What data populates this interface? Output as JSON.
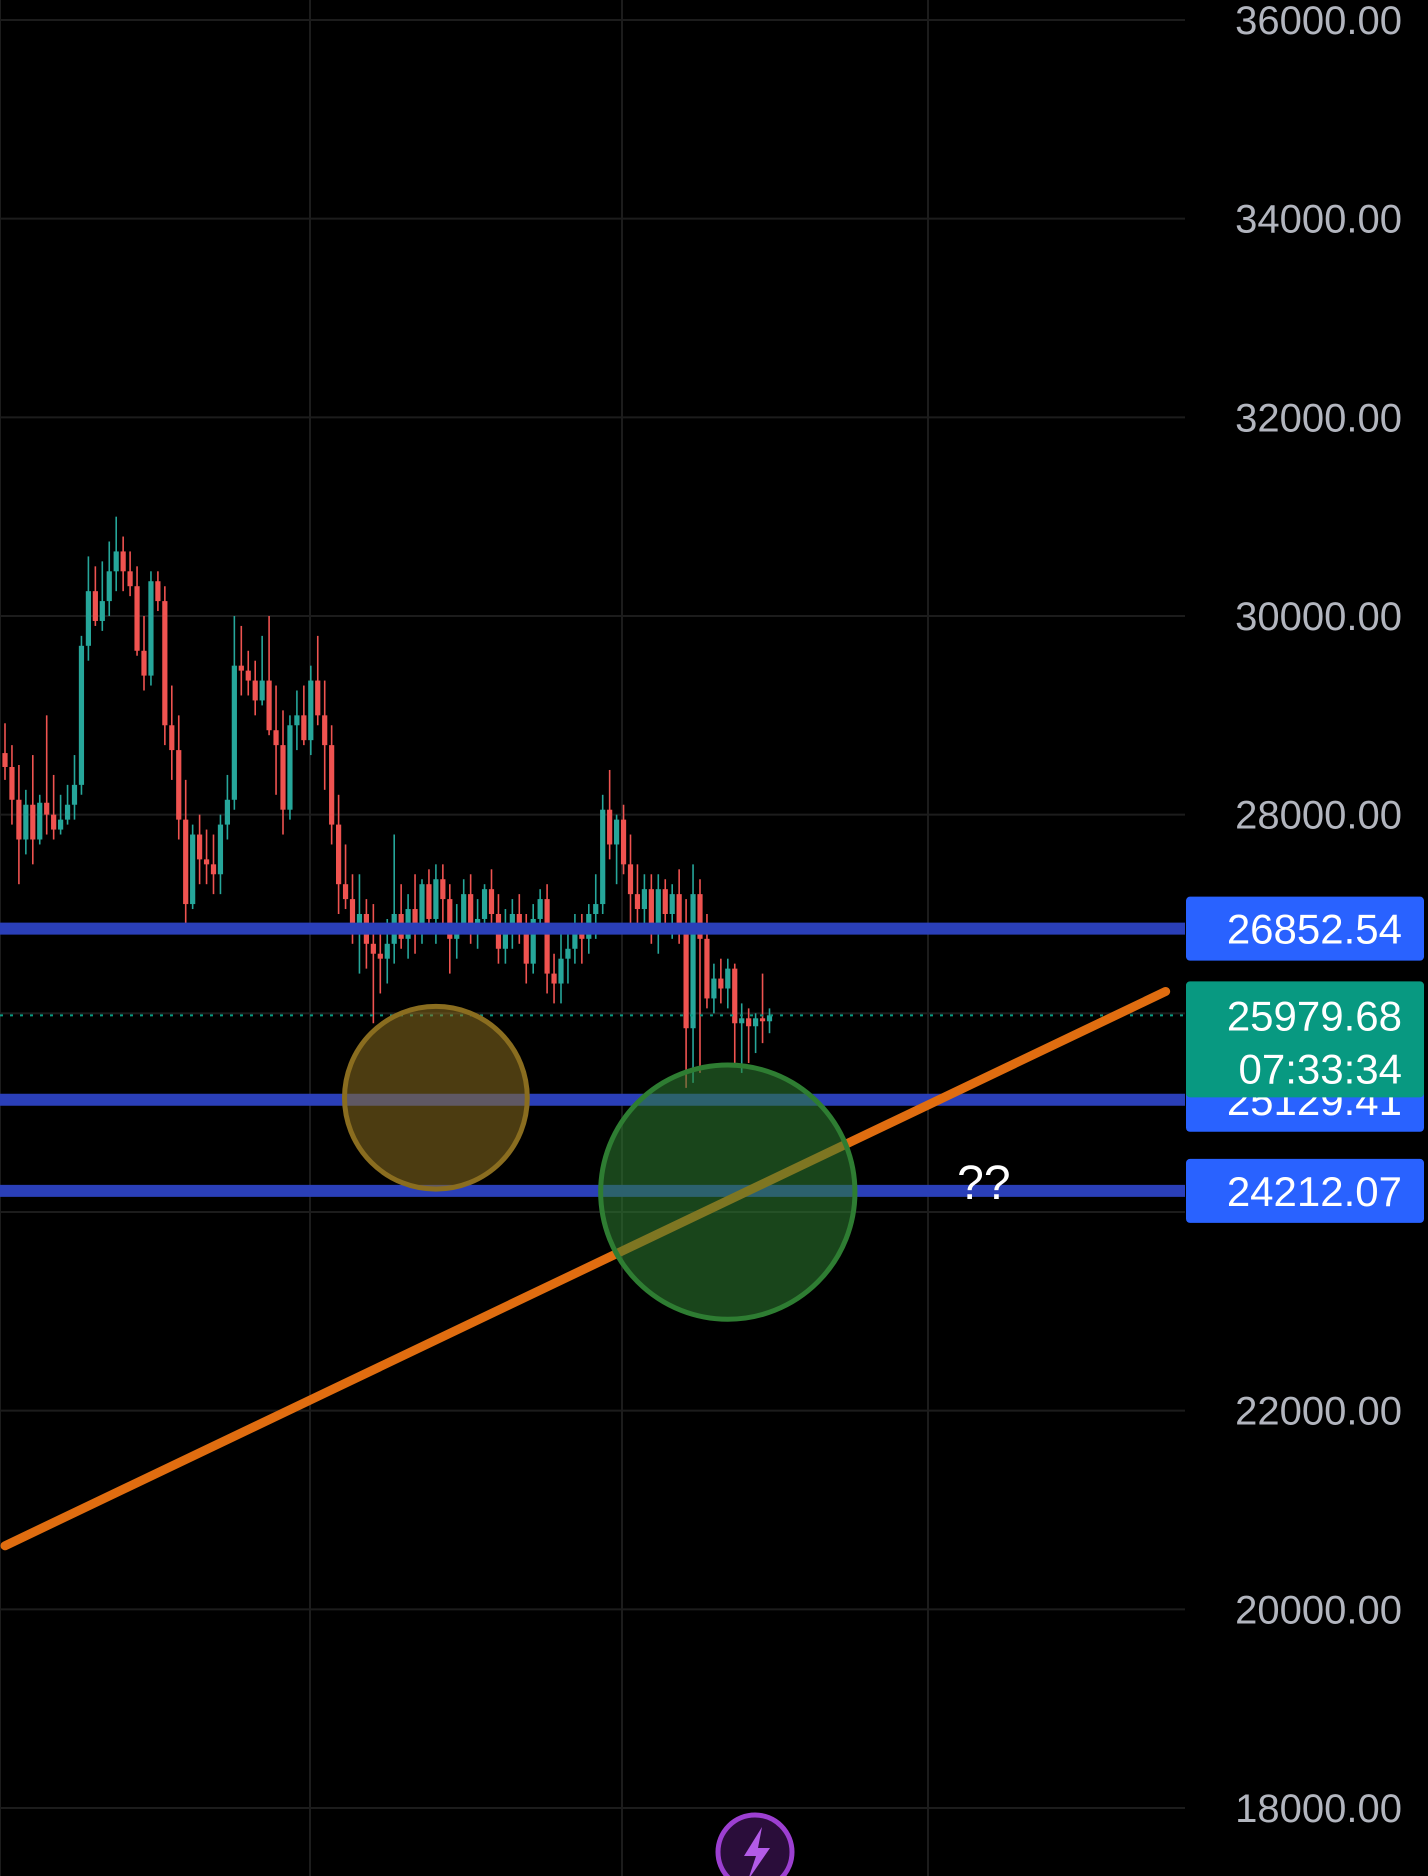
{
  "chart_data": {
    "type": "candlestick",
    "ylim": [
      17200,
      36400
    ],
    "grid": true,
    "y_ticks": [
      {
        "value": 36000,
        "label": "36000.00"
      },
      {
        "value": 34000,
        "label": "34000.00"
      },
      {
        "value": 32000,
        "label": "32000.00"
      },
      {
        "value": 30000,
        "label": "30000.00"
      },
      {
        "value": 28000,
        "label": "28000.00"
      },
      {
        "value": 22000,
        "label": "22000.00"
      },
      {
        "value": 20000,
        "label": "20000.00"
      },
      {
        "value": 18000,
        "label": "18000.00"
      }
    ],
    "colors": {
      "up": "#26a69a",
      "down": "#ef5350",
      "level": "#2a3fb8",
      "trendline": "#e06d10",
      "last_price": "#089981",
      "badge": "#2962ff"
    },
    "horizontal_levels": [
      {
        "value": 26852.54,
        "label": "26852.54"
      },
      {
        "value": 25129.41,
        "label": "25129.41"
      },
      {
        "value": 24212.07,
        "label": "24212.07"
      }
    ],
    "last_price": {
      "value": 25979.68,
      "label": "25979.68",
      "countdown": "07:33:34"
    },
    "trendline": {
      "from": [
        0,
        20640
      ],
      "to": [
        167,
        26220
      ]
    },
    "circles": [
      {
        "center": [
          62,
          25150
        ],
        "radius_price": 920,
        "color": "#8a6d1f",
        "name": "smaller-zone"
      },
      {
        "center": [
          104,
          24200
        ],
        "radius_price": 1280,
        "color": "#2e7d32",
        "name": "target-zone"
      }
    ],
    "annotation": {
      "x": 137,
      "value": 24300,
      "text": "??"
    },
    "candles": [
      [
        28620,
        28920,
        28350,
        28480
      ],
      [
        28480,
        28700,
        27900,
        28150
      ],
      [
        28150,
        28500,
        27300,
        27750
      ],
      [
        27750,
        28250,
        27600,
        28100
      ],
      [
        28100,
        28600,
        27500,
        27750
      ],
      [
        27750,
        28200,
        27700,
        28120
      ],
      [
        28120,
        29000,
        27800,
        28000
      ],
      [
        28000,
        28400,
        27750,
        27850
      ],
      [
        27850,
        28200,
        27800,
        27950
      ],
      [
        27950,
        28300,
        27900,
        28100
      ],
      [
        28100,
        28600,
        27950,
        28300
      ],
      [
        28300,
        29800,
        28200,
        29700
      ],
      [
        29700,
        30600,
        29550,
        30250
      ],
      [
        30250,
        30500,
        29900,
        29950
      ],
      [
        29950,
        30550,
        29850,
        30150
      ],
      [
        30150,
        30750,
        30000,
        30450
      ],
      [
        30450,
        31000,
        30250,
        30650
      ],
      [
        30650,
        30800,
        30250,
        30450
      ],
      [
        30450,
        30650,
        30200,
        30300
      ],
      [
        30300,
        30500,
        29600,
        29650
      ],
      [
        29650,
        30000,
        29250,
        29400
      ],
      [
        29400,
        30450,
        29300,
        30350
      ],
      [
        30350,
        30450,
        30050,
        30150
      ],
      [
        30150,
        30300,
        28700,
        28900
      ],
      [
        28900,
        29300,
        28350,
        28650
      ],
      [
        28650,
        29000,
        27750,
        27950
      ],
      [
        27950,
        28350,
        26900,
        27100
      ],
      [
        27100,
        27900,
        27050,
        27800
      ],
      [
        27800,
        28000,
        27300,
        27550
      ],
      [
        27550,
        27850,
        27300,
        27500
      ],
      [
        27500,
        27800,
        27200,
        27400
      ],
      [
        27400,
        28000,
        27200,
        27900
      ],
      [
        27900,
        28400,
        27750,
        28150
      ],
      [
        28150,
        30000,
        28050,
        29500
      ],
      [
        29500,
        29900,
        29200,
        29450
      ],
      [
        29450,
        29650,
        29200,
        29350
      ],
      [
        29350,
        29550,
        29000,
        29150
      ],
      [
        29150,
        29800,
        29100,
        29350
      ],
      [
        29350,
        30000,
        28800,
        28850
      ],
      [
        28850,
        29300,
        28200,
        28700
      ],
      [
        28700,
        29050,
        27800,
        28050
      ],
      [
        28050,
        29000,
        27950,
        28900
      ],
      [
        28900,
        29250,
        28650,
        29000
      ],
      [
        29000,
        29300,
        28700,
        28750
      ],
      [
        28750,
        29500,
        28600,
        29350
      ],
      [
        29350,
        29800,
        28900,
        29000
      ],
      [
        29000,
        29350,
        28250,
        28700
      ],
      [
        28700,
        28900,
        27700,
        27900
      ],
      [
        27900,
        28200,
        27000,
        27300
      ],
      [
        27300,
        27700,
        27050,
        27150
      ],
      [
        27150,
        27400,
        26700,
        26850
      ],
      [
        26850,
        27400,
        26400,
        27000
      ],
      [
        27000,
        27150,
        26450,
        26700
      ],
      [
        26700,
        27100,
        25900,
        26600
      ],
      [
        26600,
        26900,
        26200,
        26550
      ],
      [
        26550,
        26950,
        26300,
        26700
      ],
      [
        26700,
        27800,
        26500,
        27000
      ],
      [
        27000,
        27300,
        26650,
        26750
      ],
      [
        26750,
        27200,
        26550,
        27050
      ],
      [
        27050,
        27400,
        26600,
        26800
      ],
      [
        26800,
        27350,
        26700,
        27300
      ],
      [
        27300,
        27450,
        26800,
        26950
      ],
      [
        26950,
        27500,
        26700,
        27350
      ],
      [
        27350,
        27500,
        26850,
        27150
      ],
      [
        27150,
        27300,
        26400,
        26750
      ],
      [
        26750,
        27100,
        26550,
        26900
      ],
      [
        26900,
        27350,
        26800,
        27200
      ],
      [
        27200,
        27400,
        26700,
        26850
      ],
      [
        26850,
        27150,
        26650,
        26950
      ],
      [
        26950,
        27300,
        26850,
        27250
      ],
      [
        27250,
        27450,
        26900,
        27000
      ],
      [
        27000,
        27200,
        26500,
        26650
      ],
      [
        26650,
        27050,
        26500,
        26850
      ],
      [
        26850,
        27150,
        26650,
        27000
      ],
      [
        27000,
        27200,
        26700,
        26850
      ],
      [
        26850,
        27000,
        26300,
        26500
      ],
      [
        26500,
        27100,
        26400,
        26950
      ],
      [
        26950,
        27250,
        26800,
        27150
      ],
      [
        27150,
        27300,
        26200,
        26400
      ],
      [
        26400,
        26600,
        26100,
        26300
      ],
      [
        26300,
        26800,
        26100,
        26550
      ],
      [
        26550,
        26800,
        26300,
        26650
      ],
      [
        26650,
        27000,
        26500,
        26850
      ],
      [
        26850,
        27000,
        26500,
        26750
      ],
      [
        26750,
        27100,
        26600,
        27000
      ],
      [
        27000,
        27400,
        26750,
        27100
      ],
      [
        27100,
        28200,
        27000,
        28050
      ],
      [
        28050,
        28450,
        27550,
        27700
      ],
      [
        27700,
        28000,
        27300,
        27950
      ],
      [
        27950,
        28100,
        27400,
        27500
      ],
      [
        27500,
        27800,
        26900,
        27200
      ],
      [
        27200,
        27500,
        26900,
        27050
      ],
      [
        27050,
        27400,
        26900,
        27250
      ],
      [
        27250,
        27400,
        26700,
        26850
      ],
      [
        26850,
        27400,
        26600,
        27250
      ],
      [
        27250,
        27350,
        26900,
        27000
      ],
      [
        27000,
        27300,
        26750,
        27200
      ],
      [
        27200,
        27450,
        26700,
        26800
      ],
      [
        26800,
        27150,
        25250,
        25850
      ],
      [
        25850,
        27500,
        25300,
        27200
      ],
      [
        27200,
        27350,
        25400,
        26750
      ],
      [
        26750,
        27000,
        26050,
        26150
      ],
      [
        26150,
        26500,
        26000,
        26350
      ],
      [
        26350,
        26550,
        26100,
        26250
      ],
      [
        26250,
        26550,
        26050,
        26450
      ],
      [
        26450,
        26500,
        25500,
        25900
      ],
      [
        25900,
        26100,
        25400,
        25950
      ],
      [
        25950,
        26050,
        25500,
        25870
      ],
      [
        25870,
        26000,
        25600,
        25950
      ],
      [
        25950,
        26400,
        25700,
        25920
      ],
      [
        25920,
        26050,
        25800,
        25980
      ]
    ]
  }
}
